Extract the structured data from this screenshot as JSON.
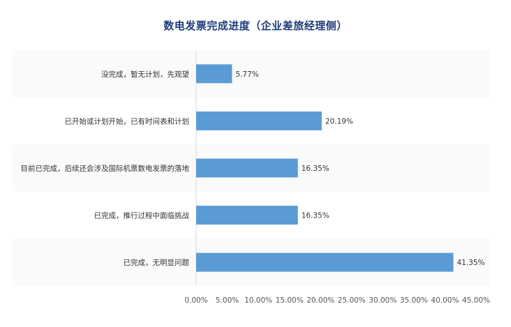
{
  "chart_data": {
    "type": "bar",
    "orientation": "horizontal",
    "title": "数电发票完成进度（企业差旅经理侧）",
    "xlabel": "",
    "ylabel": "",
    "categories": [
      "没完成，暂无计划，先观望",
      "已开始或计划开始，已有时间表和计划",
      "目前已完成，后续还会涉及国际机票数电发票的落地",
      "已完成，推行过程中面临挑战",
      "已完成，无明显问题"
    ],
    "values": [
      5.77,
      20.19,
      16.35,
      16.35,
      41.35
    ],
    "value_labels": [
      "5.77%",
      "20.19%",
      "16.35%",
      "16.35%",
      "41.35%"
    ],
    "xlim": [
      0,
      45
    ],
    "x_ticks": [
      0,
      5,
      10,
      15,
      20,
      25,
      30,
      35,
      40,
      45
    ],
    "x_tick_labels": [
      "0.00%",
      "5.00%",
      "10.00%",
      "15.00%",
      "20.00%",
      "25.00%",
      "30.00%",
      "35.00%",
      "40.00%",
      "45.00%"
    ],
    "bar_color": "#5b9bd5",
    "grid": false,
    "legend": "none"
  }
}
